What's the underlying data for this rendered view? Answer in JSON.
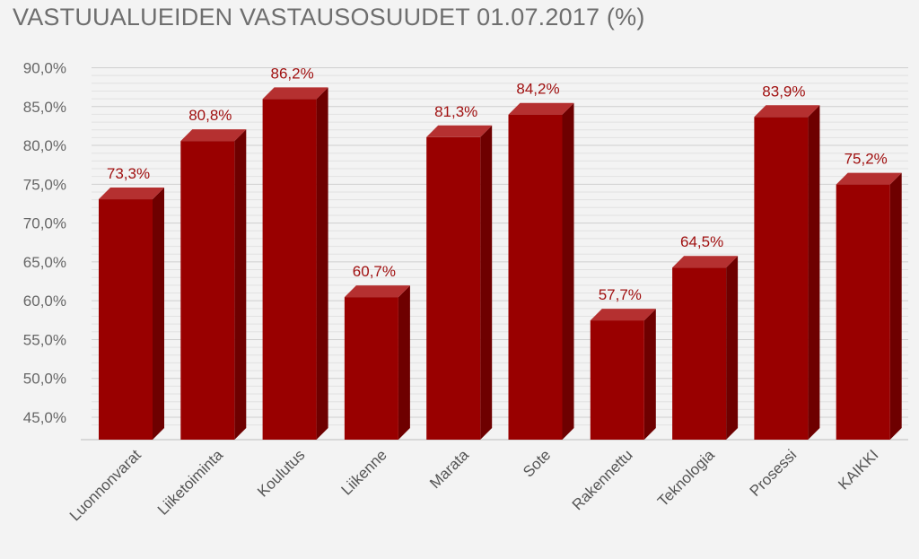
{
  "chart_data": {
    "type": "bar",
    "title": "VASTUUALUEIDEN VASTAUSOSUUDET 01.07.2017 (%)",
    "categories": [
      "Luonnonvarat",
      "Liiketoiminta",
      "Koulutus",
      "Liikenne",
      "Marata",
      "Sote",
      "Rakennettu",
      "Teknologia",
      "Prosessi",
      "KAIKKI"
    ],
    "values": [
      73.3,
      80.8,
      86.2,
      60.7,
      81.3,
      84.2,
      57.7,
      64.5,
      83.9,
      75.2
    ],
    "data_labels": [
      "73,3%",
      "80,8%",
      "86,2%",
      "60,7%",
      "81,3%",
      "84,2%",
      "57,7%",
      "64,5%",
      "83,9%",
      "75,2%"
    ],
    "ylim": [
      43.5,
      90
    ],
    "yticks": [
      90,
      85,
      80,
      75,
      70,
      65,
      60,
      55,
      50,
      45
    ],
    "ytick_labels": [
      "90,0%",
      "85,0%",
      "80,0%",
      "75,0%",
      "70,0%",
      "65,0%",
      "60,0%",
      "55,0%",
      "50,0%",
      "45,0%"
    ],
    "grid": true,
    "xlabel": "",
    "ylabel": "",
    "colors": {
      "bar_front": "#990000",
      "bar_side": "#6e0000",
      "bar_top": "#b53030",
      "grid_major": "#cfcfcf",
      "grid_minor": "#e2e2e2",
      "data_label": "#a01010"
    }
  }
}
